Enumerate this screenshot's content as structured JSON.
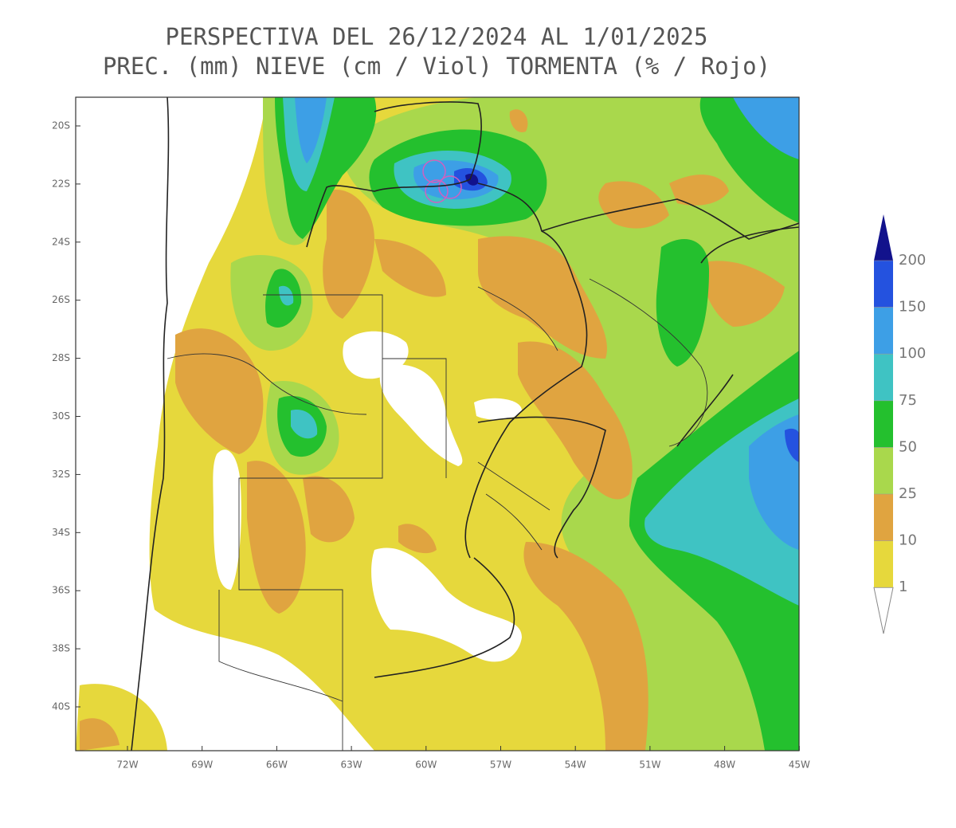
{
  "title": [
    "PERSPECTIVA DEL 26/12/2024 AL 1/01/2025",
    "PREC. (mm) NIEVE (cm / Viol) TORMENTA (% / Rojo)"
  ],
  "map": {
    "lat_labels": [
      "20S",
      "22S",
      "24S",
      "26S",
      "28S",
      "30S",
      "32S",
      "34S",
      "36S",
      "38S",
      "40S"
    ],
    "lon_labels": [
      "72W",
      "69W",
      "66W",
      "63W",
      "60W",
      "57W",
      "54W",
      "51W",
      "48W",
      "45W"
    ]
  },
  "legend": {
    "levels": [
      1,
      10,
      25,
      50,
      75,
      100,
      150,
      200
    ],
    "colors": [
      "#ffffff",
      "#e6d83c",
      "#e0a440",
      "#a9d84c",
      "#24c02e",
      "#3fc3c3",
      "#3d9fe6",
      "#2452df",
      "#12128c"
    ]
  }
}
